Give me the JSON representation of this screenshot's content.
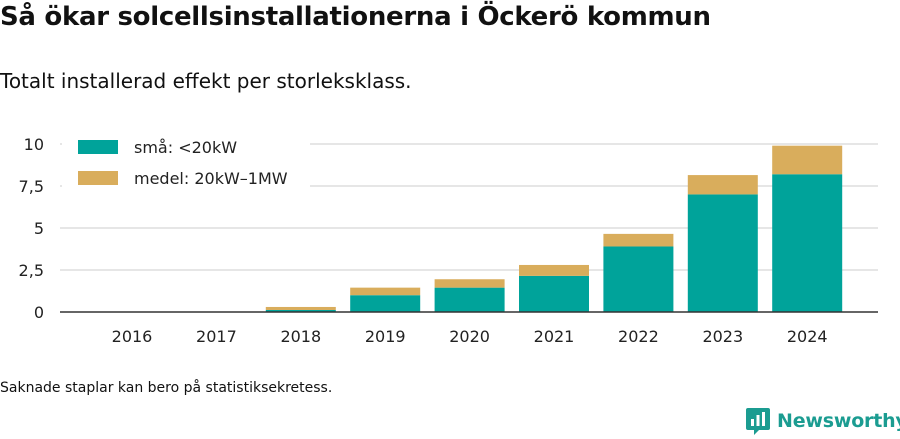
{
  "header": {
    "title": "Så ökar solcellsinstallationerna i Öckerö kommun",
    "subtitle": "Totalt installerad effekt per storleksklass."
  },
  "footer": {
    "note": "Saknade staplar kan bero på statistiksekretess.",
    "brand": "Newsworthy"
  },
  "colors": {
    "small": "#00a39a",
    "medium": "#d9ad5c",
    "grid": "#dddddd",
    "axis": "#333333",
    "brand": "#1b9c91"
  },
  "chart_data": {
    "type": "bar",
    "stacked": true,
    "categories": [
      "2016",
      "2017",
      "2018",
      "2019",
      "2020",
      "2021",
      "2022",
      "2023",
      "2024"
    ],
    "series": [
      {
        "name": "små: <20kW",
        "values": [
          0,
          0,
          0.12,
          1.0,
          1.45,
          2.15,
          3.9,
          7.0,
          8.2
        ]
      },
      {
        "name": "medel: 20kW–1MW",
        "values": [
          0,
          0,
          0.18,
          0.45,
          0.5,
          0.65,
          0.75,
          1.15,
          1.7
        ]
      }
    ],
    "yticks": [
      0,
      2.5,
      5,
      7.5,
      10
    ],
    "ytick_labels": [
      "0",
      "2,5",
      "5",
      "7,5",
      "10"
    ],
    "ylim": [
      0,
      10
    ],
    "grid": true,
    "legend": "top-left"
  }
}
